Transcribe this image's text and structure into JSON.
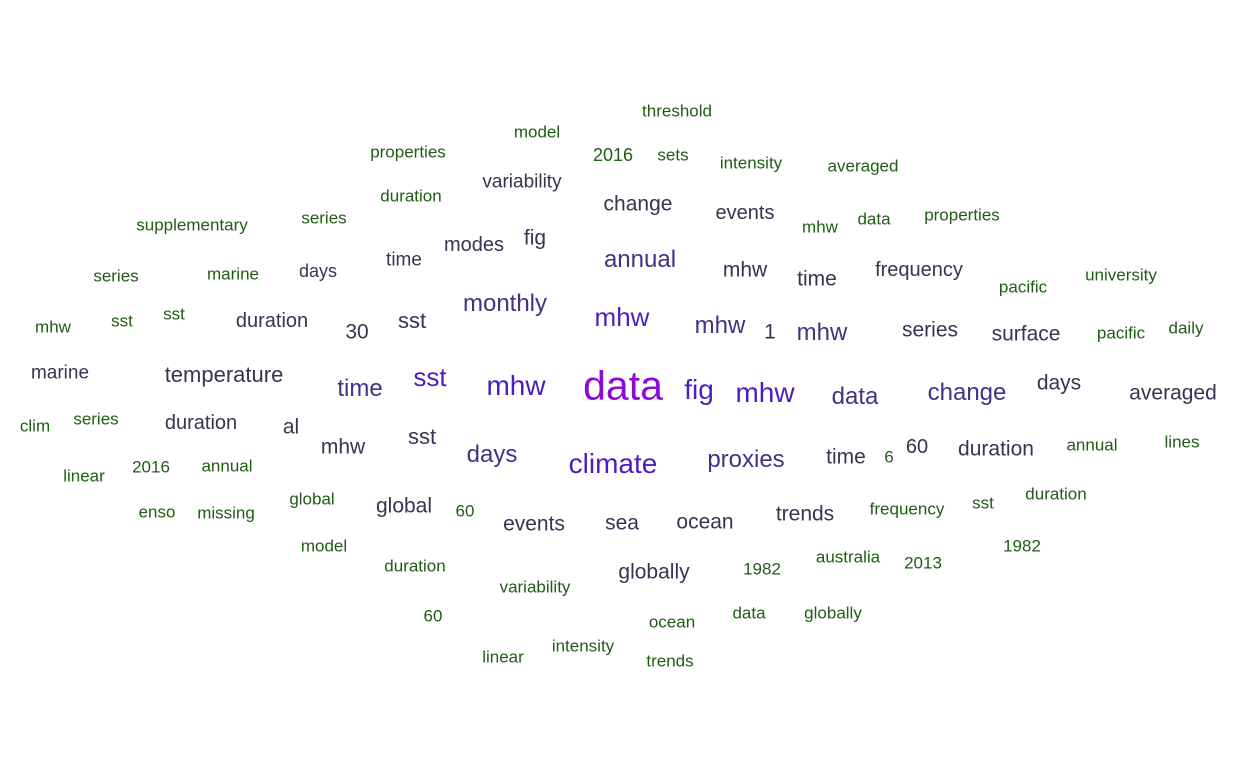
{
  "colors": {
    "background": "#ffffff",
    "tier5": "#8b0ad8",
    "tier4": "#4a1fbf",
    "tier3": "#3f3385",
    "tier2": "#333650",
    "tier1": "#1f5d14"
  },
  "words": [
    {
      "text": "data",
      "tier": 5
    },
    {
      "text": "mhw",
      "tier": 4
    },
    {
      "text": "climate",
      "tier": 4
    },
    {
      "text": "fig",
      "tier": 4
    },
    {
      "text": "mhw",
      "tier": 4
    },
    {
      "text": "sst",
      "tier": 4
    },
    {
      "text": "mhw",
      "tier": 4
    },
    {
      "text": "monthly",
      "tier": 3
    },
    {
      "text": "mhw",
      "tier": 3
    },
    {
      "text": "time",
      "tier": 3
    },
    {
      "text": "data",
      "tier": 3
    },
    {
      "text": "proxies",
      "tier": 3
    },
    {
      "text": "days",
      "tier": 3
    },
    {
      "text": "annual",
      "tier": 3
    },
    {
      "text": "mhw",
      "tier": 3
    },
    {
      "text": "change",
      "tier": 3
    },
    {
      "text": "temperature",
      "tier": 2
    },
    {
      "text": "sst",
      "tier": 2
    },
    {
      "text": "sst",
      "tier": 2
    },
    {
      "text": "mhw",
      "tier": 2
    },
    {
      "text": "sea",
      "tier": 2
    },
    {
      "text": "ocean",
      "tier": 2
    },
    {
      "text": "events",
      "tier": 2
    },
    {
      "text": "globally",
      "tier": 2
    },
    {
      "text": "global",
      "tier": 2
    },
    {
      "text": "trends",
      "tier": 2
    },
    {
      "text": "time",
      "tier": 2
    },
    {
      "text": "series",
      "tier": 2
    },
    {
      "text": "surface",
      "tier": 2
    },
    {
      "text": "duration",
      "tier": 2
    },
    {
      "text": "days",
      "tier": 2
    },
    {
      "text": "averaged",
      "tier": 2
    },
    {
      "text": "change",
      "tier": 2
    },
    {
      "text": "events",
      "tier": 2
    },
    {
      "text": "mhw",
      "tier": 2
    },
    {
      "text": "time",
      "tier": 2
    },
    {
      "text": "frequency",
      "tier": 2
    },
    {
      "text": "modes",
      "tier": 2
    },
    {
      "text": "fig",
      "tier": 2
    },
    {
      "text": "variability",
      "tier": 2
    },
    {
      "text": "time",
      "tier": 2
    },
    {
      "text": "duration",
      "tier": 2
    },
    {
      "text": "duration",
      "tier": 2
    },
    {
      "text": "marine",
      "tier": 2
    },
    {
      "text": "al",
      "tier": 2
    },
    {
      "text": "30",
      "tier": 2
    },
    {
      "text": "1",
      "tier": 2
    },
    {
      "text": "60",
      "tier": 2
    },
    {
      "text": "days",
      "tier": 2
    },
    {
      "text": "threshold",
      "tier": 1
    },
    {
      "text": "model",
      "tier": 1
    },
    {
      "text": "properties",
      "tier": 1
    },
    {
      "text": "2016",
      "tier": 1
    },
    {
      "text": "sets",
      "tier": 1
    },
    {
      "text": "intensity",
      "tier": 1
    },
    {
      "text": "averaged",
      "tier": 1
    },
    {
      "text": "duration",
      "tier": 1
    },
    {
      "text": "supplementary",
      "tier": 1
    },
    {
      "text": "series",
      "tier": 1
    },
    {
      "text": "mhw",
      "tier": 1
    },
    {
      "text": "data",
      "tier": 1
    },
    {
      "text": "properties",
      "tier": 1
    },
    {
      "text": "series",
      "tier": 1
    },
    {
      "text": "marine",
      "tier": 1
    },
    {
      "text": "pacific",
      "tier": 1
    },
    {
      "text": "university",
      "tier": 1
    },
    {
      "text": "mhw",
      "tier": 1
    },
    {
      "text": "sst",
      "tier": 1
    },
    {
      "text": "sst",
      "tier": 1
    },
    {
      "text": "pacific",
      "tier": 1
    },
    {
      "text": "daily",
      "tier": 1
    },
    {
      "text": "clim",
      "tier": 1
    },
    {
      "text": "series",
      "tier": 1
    },
    {
      "text": "annual",
      "tier": 1
    },
    {
      "text": "lines",
      "tier": 1
    },
    {
      "text": "linear",
      "tier": 1
    },
    {
      "text": "2016",
      "tier": 1
    },
    {
      "text": "annual",
      "tier": 1
    },
    {
      "text": "6",
      "tier": 1
    },
    {
      "text": "global",
      "tier": 1
    },
    {
      "text": "60",
      "tier": 1
    },
    {
      "text": "frequency",
      "tier": 1
    },
    {
      "text": "sst",
      "tier": 1
    },
    {
      "text": "duration",
      "tier": 1
    },
    {
      "text": "enso",
      "tier": 1
    },
    {
      "text": "missing",
      "tier": 1
    },
    {
      "text": "model",
      "tier": 1
    },
    {
      "text": "duration",
      "tier": 1
    },
    {
      "text": "variability",
      "tier": 1
    },
    {
      "text": "1982",
      "tier": 1
    },
    {
      "text": "australia",
      "tier": 1
    },
    {
      "text": "2013",
      "tier": 1
    },
    {
      "text": "1982",
      "tier": 1
    },
    {
      "text": "60",
      "tier": 1
    },
    {
      "text": "ocean",
      "tier": 1
    },
    {
      "text": "data",
      "tier": 1
    },
    {
      "text": "globally",
      "tier": 1
    },
    {
      "text": "linear",
      "tier": 1
    },
    {
      "text": "intensity",
      "tier": 1
    },
    {
      "text": "trends",
      "tier": 1
    }
  ]
}
